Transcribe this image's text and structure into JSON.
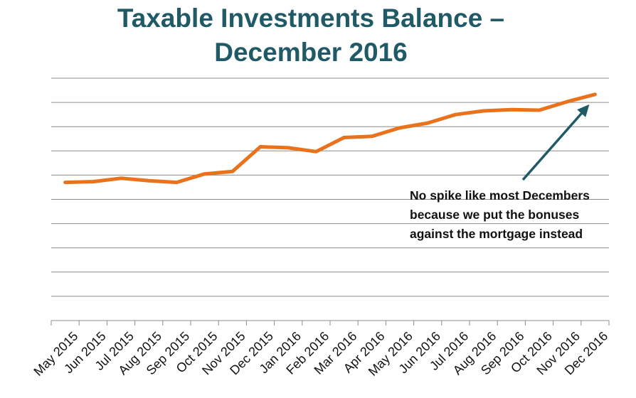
{
  "chart_data": {
    "type": "line",
    "title_lines": [
      "Taxable Investments Balance –",
      "December 2016"
    ],
    "title": "Taxable Investments Balance – December 2016",
    "categories": [
      "May 2015",
      "Jun 2015",
      "Jul 2015",
      "Aug 2015",
      "Sep 2015",
      "Oct 2015",
      "Nov 2015",
      "Dec 2015",
      "Jan 2016",
      "Feb 2016",
      "Mar 2016",
      "Apr 2016",
      "May 2016",
      "Jun 2016",
      "Jul 2016",
      "Aug 2016",
      "Sep 2016",
      "Oct 2016",
      "Nov 2016",
      "Dec 2016"
    ],
    "series": [
      {
        "name": "Taxable Investments Balance",
        "color": "#e8731c",
        "values": [
          5.7,
          5.73,
          5.87,
          5.77,
          5.7,
          6.05,
          6.15,
          7.17,
          7.13,
          6.97,
          7.55,
          7.6,
          7.95,
          8.15,
          8.5,
          8.65,
          8.7,
          8.68,
          9.03,
          9.33
        ]
      }
    ],
    "ylim": [
      0,
      10
    ],
    "y_tick_count": 10,
    "y_tick_labels_shown": false,
    "grid": true,
    "xlabel": "",
    "ylabel": "",
    "annotation": {
      "lines": [
        "No spike like most Decembers",
        "because we put the bonuses",
        "against the mortgage instead"
      ],
      "arrow_target_category": "Dec 2016",
      "arrow_color": "#1f5a66"
    }
  },
  "colors": {
    "title": "#1f5a66",
    "line": "#e8731c",
    "grid": "#8c8c8c",
    "arrow": "#1f5a66"
  }
}
